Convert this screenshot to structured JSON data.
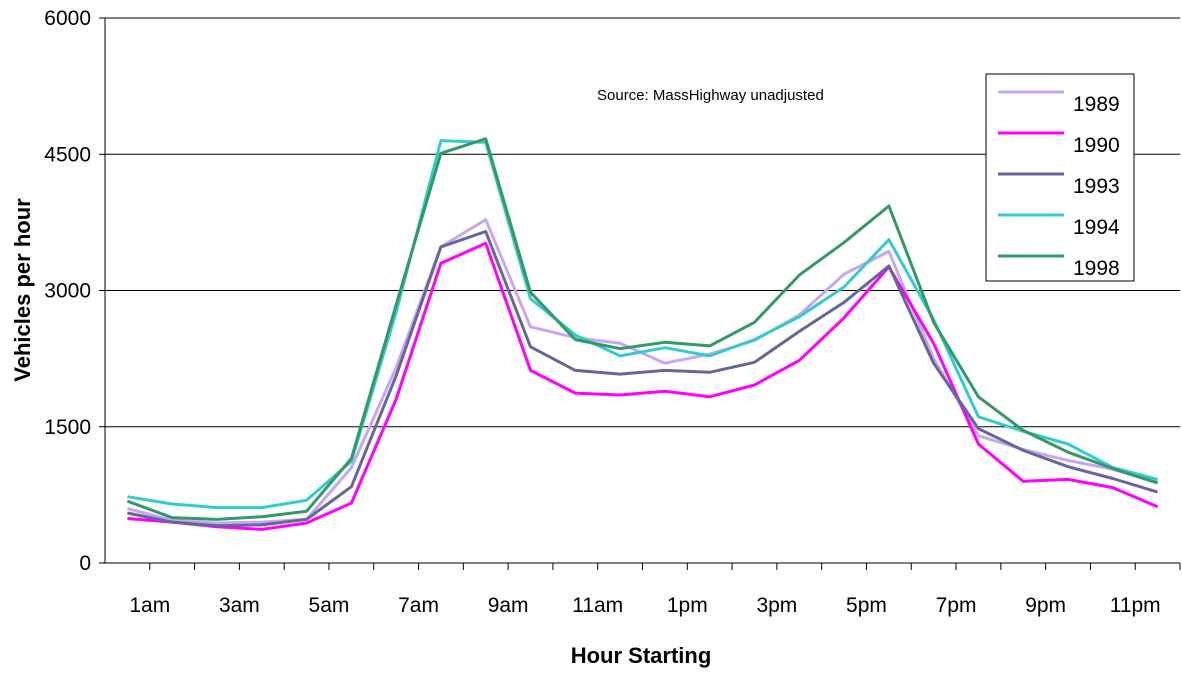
{
  "chart_data": {
    "type": "line",
    "xlabel": "Hour Starting",
    "ylabel": "Vehicles per hour",
    "annotation": "Source:  MassHighway unadjusted",
    "ylim": [
      0,
      6000
    ],
    "yticks": [
      0,
      1500,
      3000,
      4500,
      6000
    ],
    "grid": "horizontal",
    "legend_position": "top-right",
    "categories": [
      "1am",
      "2am",
      "3am",
      "4am",
      "5am",
      "6am",
      "7am",
      "8am",
      "9am",
      "10am",
      "11am",
      "12pm",
      "1pm",
      "2pm",
      "3pm",
      "4pm",
      "5pm",
      "6pm",
      "7pm",
      "8pm",
      "9pm",
      "10pm",
      "11pm",
      "12am"
    ],
    "x_tick_labels": [
      "1am",
      "3am",
      "5am",
      "7am",
      "9am",
      "11am",
      "1pm",
      "3pm",
      "5pm",
      "7pm",
      "9pm",
      "11pm"
    ],
    "series": [
      {
        "name": "1989",
        "color": "#c6a6f5",
        "values": [
          600,
          470,
          440,
          450,
          480,
          1050,
          2150,
          3480,
          3780,
          2600,
          2480,
          2420,
          2200,
          2300,
          2450,
          2730,
          3180,
          3430,
          2250,
          1400,
          1250,
          1130,
          1030,
          890
        ]
      },
      {
        "name": "1990",
        "color": "#ff00ff",
        "values": [
          490,
          450,
          400,
          370,
          440,
          660,
          1800,
          3300,
          3520,
          2120,
          1870,
          1850,
          1890,
          1830,
          1960,
          2230,
          2700,
          3260,
          2420,
          1310,
          900,
          920,
          830,
          620
        ]
      },
      {
        "name": "1993",
        "color": "#666699",
        "values": [
          550,
          450,
          410,
          420,
          480,
          840,
          2060,
          3480,
          3650,
          2380,
          2120,
          2080,
          2120,
          2100,
          2210,
          2550,
          2870,
          3270,
          2200,
          1480,
          1240,
          1060,
          930,
          780
        ]
      },
      {
        "name": "1994",
        "color": "#33cccc",
        "values": [
          730,
          650,
          610,
          610,
          690,
          1120,
          2760,
          4650,
          4630,
          2910,
          2510,
          2280,
          2370,
          2280,
          2460,
          2710,
          3040,
          3560,
          2680,
          1610,
          1450,
          1310,
          1050,
          920
        ]
      },
      {
        "name": "1998",
        "color": "#339966",
        "values": [
          680,
          500,
          480,
          510,
          570,
          1150,
          2840,
          4510,
          4670,
          2980,
          2460,
          2360,
          2430,
          2390,
          2650,
          3170,
          3530,
          3930,
          2650,
          1830,
          1460,
          1220,
          1040,
          880
        ]
      }
    ]
  }
}
